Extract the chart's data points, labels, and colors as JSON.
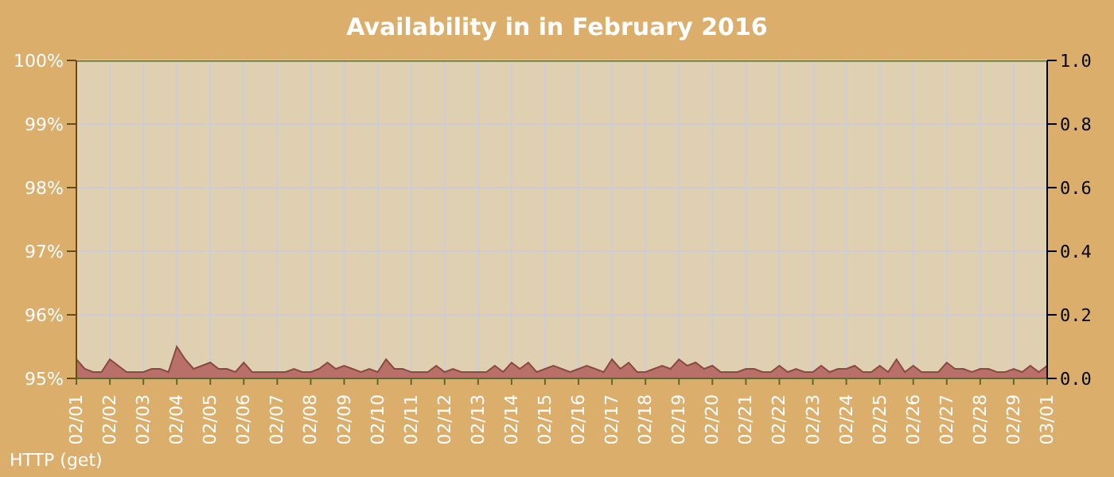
{
  "chart_data": {
    "type": "line",
    "title": "Availability in in February 2016",
    "annotations": [
      "HTTP (get)"
    ],
    "xlim": [
      "2016-02-01",
      "2016-03-01"
    ],
    "xticks": [
      {
        "value": "2016-02-01",
        "label": "02/01"
      },
      {
        "value": "2016-02-02",
        "label": "02/02"
      },
      {
        "value": "2016-02-03",
        "label": "02/03"
      },
      {
        "value": "2016-02-04",
        "label": "02/04"
      },
      {
        "value": "2016-02-05",
        "label": "02/05"
      },
      {
        "value": "2016-02-06",
        "label": "02/06"
      },
      {
        "value": "2016-02-07",
        "label": "02/07"
      },
      {
        "value": "2016-02-08",
        "label": "02/08"
      },
      {
        "value": "2016-02-09",
        "label": "02/09"
      },
      {
        "value": "2016-02-10",
        "label": "02/10"
      },
      {
        "value": "2016-02-11",
        "label": "02/11"
      },
      {
        "value": "2016-02-12",
        "label": "02/12"
      },
      {
        "value": "2016-02-13",
        "label": "02/13"
      },
      {
        "value": "2016-02-14",
        "label": "02/14"
      },
      {
        "value": "2016-02-15",
        "label": "02/15"
      },
      {
        "value": "2016-02-16",
        "label": "02/16"
      },
      {
        "value": "2016-02-17",
        "label": "02/17"
      },
      {
        "value": "2016-02-18",
        "label": "02/18"
      },
      {
        "value": "2016-02-19",
        "label": "02/19"
      },
      {
        "value": "2016-02-20",
        "label": "02/20"
      },
      {
        "value": "2016-02-21",
        "label": "02/21"
      },
      {
        "value": "2016-02-22",
        "label": "02/22"
      },
      {
        "value": "2016-02-23",
        "label": "02/23"
      },
      {
        "value": "2016-02-24",
        "label": "02/24"
      },
      {
        "value": "2016-02-25",
        "label": "02/25"
      },
      {
        "value": "2016-02-26",
        "label": "02/26"
      },
      {
        "value": "2016-02-27",
        "label": "02/27"
      },
      {
        "value": "2016-02-28",
        "label": "02/28"
      },
      {
        "value": "2016-02-29",
        "label": "02/29"
      },
      {
        "value": "2016-03-01",
        "label": "03/01"
      }
    ],
    "ylim": [
      95,
      100
    ],
    "yticks": [
      {
        "value": 95,
        "label": "95%"
      },
      {
        "value": 96,
        "label": "96%"
      },
      {
        "value": 97,
        "label": "97%"
      },
      {
        "value": 98,
        "label": "98%"
      },
      {
        "value": 99,
        "label": "99%"
      },
      {
        "value": 100,
        "label": "100%"
      }
    ],
    "y2lim": [
      0,
      1
    ],
    "y2ticks": [
      {
        "value": 0,
        "label": "0.0"
      },
      {
        "value": 0.2,
        "label": "0.2"
      },
      {
        "value": 0.4,
        "label": "0.4"
      },
      {
        "value": 0.6,
        "label": "0.6"
      },
      {
        "value": 0.8,
        "label": "0.8"
      },
      {
        "value": 1,
        "label": "1.0"
      }
    ],
    "grid": true,
    "series": [
      {
        "color": "#5a6a2a",
        "x": [
          "2016-02-01",
          "2016-03-01"
        ],
        "values": [
          100,
          100
        ]
      },
      {
        "type": "area",
        "axis": "y2",
        "color": "#b87068",
        "x": [
          "2016-02-01T00:00",
          "2016-02-01T06:00",
          "2016-02-01T12:00",
          "2016-02-01T18:00",
          "2016-02-02T00:00",
          "2016-02-02T06:00",
          "2016-02-02T12:00",
          "2016-02-02T18:00",
          "2016-02-03T00:00",
          "2016-02-03T06:00",
          "2016-02-03T12:00",
          "2016-02-03T18:00",
          "2016-02-04T00:00",
          "2016-02-04T06:00",
          "2016-02-04T12:00",
          "2016-02-04T18:00",
          "2016-02-05T00:00",
          "2016-02-05T06:00",
          "2016-02-05T12:00",
          "2016-02-05T18:00",
          "2016-02-06T00:00",
          "2016-02-06T06:00",
          "2016-02-06T12:00",
          "2016-02-06T18:00",
          "2016-02-07T00:00",
          "2016-02-07T06:00",
          "2016-02-07T12:00",
          "2016-02-07T18:00",
          "2016-02-08T00:00",
          "2016-02-08T06:00",
          "2016-02-08T12:00",
          "2016-02-08T18:00",
          "2016-02-09T00:00",
          "2016-02-09T06:00",
          "2016-02-09T12:00",
          "2016-02-09T18:00",
          "2016-02-10T00:00",
          "2016-02-10T06:00",
          "2016-02-10T12:00",
          "2016-02-10T18:00",
          "2016-02-11T00:00",
          "2016-02-11T06:00",
          "2016-02-11T12:00",
          "2016-02-11T18:00",
          "2016-02-12T00:00",
          "2016-02-12T06:00",
          "2016-02-12T12:00",
          "2016-02-12T18:00",
          "2016-02-13T00:00",
          "2016-02-13T06:00",
          "2016-02-13T12:00",
          "2016-02-13T18:00",
          "2016-02-14T00:00",
          "2016-02-14T06:00",
          "2016-02-14T12:00",
          "2016-02-14T18:00",
          "2016-02-15T00:00",
          "2016-02-15T06:00",
          "2016-02-15T12:00",
          "2016-02-15T18:00",
          "2016-02-16T00:00",
          "2016-02-16T06:00",
          "2016-02-16T12:00",
          "2016-02-16T18:00",
          "2016-02-17T00:00",
          "2016-02-17T06:00",
          "2016-02-17T12:00",
          "2016-02-17T18:00",
          "2016-02-18T00:00",
          "2016-02-18T06:00",
          "2016-02-18T12:00",
          "2016-02-18T18:00",
          "2016-02-19T00:00",
          "2016-02-19T06:00",
          "2016-02-19T12:00",
          "2016-02-19T18:00",
          "2016-02-20T00:00",
          "2016-02-20T06:00",
          "2016-02-20T12:00",
          "2016-02-20T18:00",
          "2016-02-21T00:00",
          "2016-02-21T06:00",
          "2016-02-21T12:00",
          "2016-02-21T18:00",
          "2016-02-22T00:00",
          "2016-02-22T06:00",
          "2016-02-22T12:00",
          "2016-02-22T18:00",
          "2016-02-23T00:00",
          "2016-02-23T06:00",
          "2016-02-23T12:00",
          "2016-02-23T18:00",
          "2016-02-24T00:00",
          "2016-02-24T06:00",
          "2016-02-24T12:00",
          "2016-02-24T18:00",
          "2016-02-25T00:00",
          "2016-02-25T06:00",
          "2016-02-25T12:00",
          "2016-02-25T18:00",
          "2016-02-26T00:00",
          "2016-02-26T06:00",
          "2016-02-26T12:00",
          "2016-02-26T18:00",
          "2016-02-27T00:00",
          "2016-02-27T06:00",
          "2016-02-27T12:00",
          "2016-02-27T18:00",
          "2016-02-28T00:00",
          "2016-02-28T06:00",
          "2016-02-28T12:00",
          "2016-02-28T18:00",
          "2016-02-29T00:00",
          "2016-02-29T06:00",
          "2016-02-29T12:00",
          "2016-02-29T18:00",
          "2016-03-01T00:00"
        ],
        "values": [
          0.06,
          0.03,
          0.02,
          0.02,
          0.06,
          0.04,
          0.02,
          0.02,
          0.02,
          0.03,
          0.03,
          0.02,
          0.1,
          0.06,
          0.03,
          0.04,
          0.05,
          0.03,
          0.03,
          0.02,
          0.05,
          0.02,
          0.02,
          0.02,
          0.02,
          0.02,
          0.03,
          0.02,
          0.02,
          0.03,
          0.05,
          0.03,
          0.04,
          0.03,
          0.02,
          0.03,
          0.02,
          0.06,
          0.03,
          0.03,
          0.02,
          0.02,
          0.02,
          0.04,
          0.02,
          0.03,
          0.02,
          0.02,
          0.02,
          0.02,
          0.04,
          0.02,
          0.05,
          0.03,
          0.05,
          0.02,
          0.03,
          0.04,
          0.03,
          0.02,
          0.03,
          0.04,
          0.03,
          0.02,
          0.06,
          0.03,
          0.05,
          0.02,
          0.02,
          0.03,
          0.04,
          0.03,
          0.06,
          0.04,
          0.05,
          0.03,
          0.04,
          0.02,
          0.02,
          0.02,
          0.03,
          0.03,
          0.02,
          0.02,
          0.04,
          0.02,
          0.03,
          0.02,
          0.02,
          0.04,
          0.02,
          0.03,
          0.03,
          0.04,
          0.02,
          0.02,
          0.04,
          0.02,
          0.06,
          0.02,
          0.04,
          0.02,
          0.02,
          0.02,
          0.05,
          0.03,
          0.03,
          0.02,
          0.03,
          0.03,
          0.02,
          0.02,
          0.03,
          0.02,
          0.04,
          0.02,
          0.04
        ]
      }
    ]
  }
}
